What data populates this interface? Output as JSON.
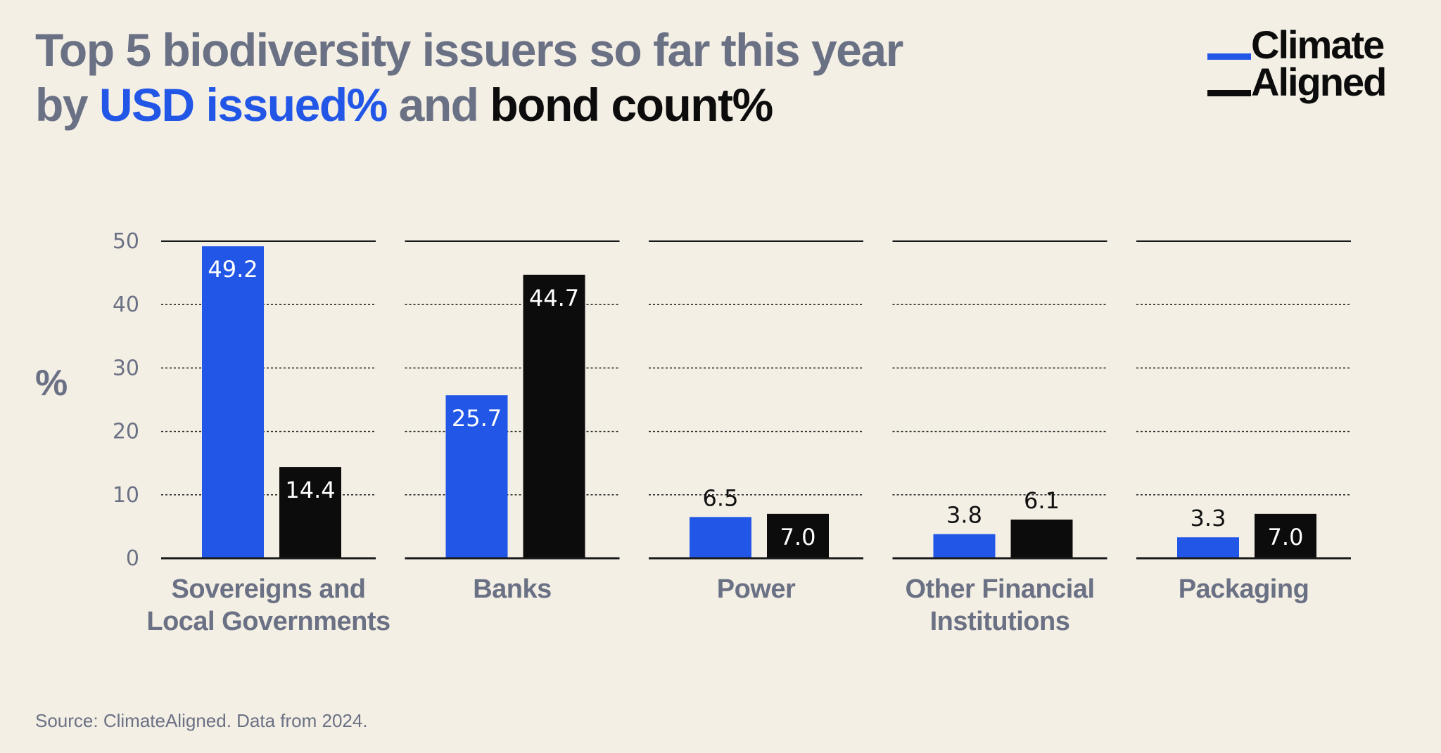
{
  "title": {
    "line1": "Top 5 biodiversity issuers so far this year",
    "line2_prefix": "by ",
    "line2_blue": "USD issued%",
    "line2_mid": " and ",
    "line2_black": "bond count%"
  },
  "logo": {
    "word1": "Climate",
    "word2": "Aligned"
  },
  "source": "Source: ClimateAligned. Data from 2024.",
  "colors": {
    "usd": "#2256e6",
    "count": "#0c0c0c",
    "axis_text": "#6b7184",
    "background": "#f3efe5"
  },
  "chart_data": {
    "type": "bar",
    "title": "Top 5 biodiversity issuers so far this year by USD issued% and bond count%",
    "ylabel": "%",
    "xlabel": "",
    "ylim": [
      0,
      50
    ],
    "yticks": [
      0,
      10,
      20,
      30,
      40,
      50
    ],
    "grid": true,
    "legend": "in title",
    "categories": [
      [
        "Sovereigns and",
        "Local Governments"
      ],
      [
        "Banks"
      ],
      [
        "Power"
      ],
      [
        "Other Financial",
        "Institutions"
      ],
      [
        "Packaging"
      ]
    ],
    "series": [
      {
        "name": "USD issued%",
        "color": "#2256e6",
        "values": [
          49.2,
          25.7,
          6.5,
          3.8,
          3.3
        ],
        "labels": [
          "49.2",
          "25.7",
          "6.5",
          "3.8",
          "3.3"
        ]
      },
      {
        "name": "bond count%",
        "color": "#0c0c0c",
        "values": [
          14.4,
          44.7,
          7.0,
          6.1,
          7.0
        ],
        "labels": [
          "14.4",
          "44.7",
          "7.0",
          "6.1",
          "7.0"
        ]
      }
    ]
  }
}
